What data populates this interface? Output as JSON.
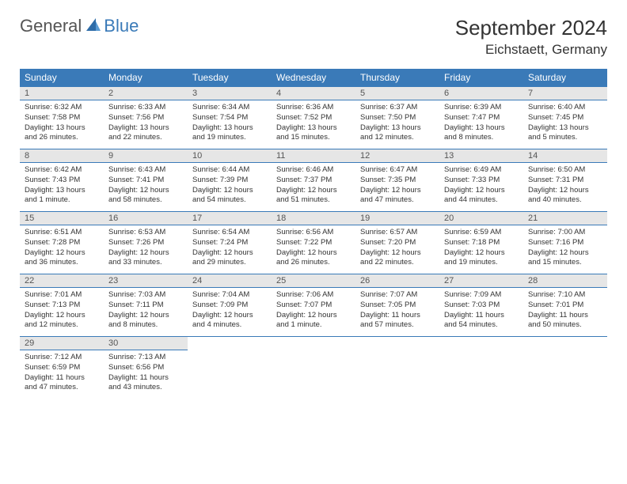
{
  "brand": {
    "part1": "General",
    "part2": "Blue"
  },
  "title": "September 2024",
  "location": "Eichstaett, Germany",
  "colors": {
    "header_bg": "#3a7ab8",
    "header_text": "#ffffff",
    "daynum_bg": "#e6e6e6",
    "divider": "#3a7ab8",
    "text": "#333333",
    "page_bg": "#ffffff"
  },
  "typography": {
    "title_fontsize": 26,
    "location_fontsize": 17,
    "dayheader_fontsize": 12,
    "daynum_fontsize": 11,
    "body_fontsize": 9.5
  },
  "day_headers": [
    "Sunday",
    "Monday",
    "Tuesday",
    "Wednesday",
    "Thursday",
    "Friday",
    "Saturday"
  ],
  "weeks": [
    [
      {
        "num": "1",
        "sunrise": "Sunrise: 6:32 AM",
        "sunset": "Sunset: 7:58 PM",
        "daylight": "Daylight: 13 hours and 26 minutes."
      },
      {
        "num": "2",
        "sunrise": "Sunrise: 6:33 AM",
        "sunset": "Sunset: 7:56 PM",
        "daylight": "Daylight: 13 hours and 22 minutes."
      },
      {
        "num": "3",
        "sunrise": "Sunrise: 6:34 AM",
        "sunset": "Sunset: 7:54 PM",
        "daylight": "Daylight: 13 hours and 19 minutes."
      },
      {
        "num": "4",
        "sunrise": "Sunrise: 6:36 AM",
        "sunset": "Sunset: 7:52 PM",
        "daylight": "Daylight: 13 hours and 15 minutes."
      },
      {
        "num": "5",
        "sunrise": "Sunrise: 6:37 AM",
        "sunset": "Sunset: 7:50 PM",
        "daylight": "Daylight: 13 hours and 12 minutes."
      },
      {
        "num": "6",
        "sunrise": "Sunrise: 6:39 AM",
        "sunset": "Sunset: 7:47 PM",
        "daylight": "Daylight: 13 hours and 8 minutes."
      },
      {
        "num": "7",
        "sunrise": "Sunrise: 6:40 AM",
        "sunset": "Sunset: 7:45 PM",
        "daylight": "Daylight: 13 hours and 5 minutes."
      }
    ],
    [
      {
        "num": "8",
        "sunrise": "Sunrise: 6:42 AM",
        "sunset": "Sunset: 7:43 PM",
        "daylight": "Daylight: 13 hours and 1 minute."
      },
      {
        "num": "9",
        "sunrise": "Sunrise: 6:43 AM",
        "sunset": "Sunset: 7:41 PM",
        "daylight": "Daylight: 12 hours and 58 minutes."
      },
      {
        "num": "10",
        "sunrise": "Sunrise: 6:44 AM",
        "sunset": "Sunset: 7:39 PM",
        "daylight": "Daylight: 12 hours and 54 minutes."
      },
      {
        "num": "11",
        "sunrise": "Sunrise: 6:46 AM",
        "sunset": "Sunset: 7:37 PM",
        "daylight": "Daylight: 12 hours and 51 minutes."
      },
      {
        "num": "12",
        "sunrise": "Sunrise: 6:47 AM",
        "sunset": "Sunset: 7:35 PM",
        "daylight": "Daylight: 12 hours and 47 minutes."
      },
      {
        "num": "13",
        "sunrise": "Sunrise: 6:49 AM",
        "sunset": "Sunset: 7:33 PM",
        "daylight": "Daylight: 12 hours and 44 minutes."
      },
      {
        "num": "14",
        "sunrise": "Sunrise: 6:50 AM",
        "sunset": "Sunset: 7:31 PM",
        "daylight": "Daylight: 12 hours and 40 minutes."
      }
    ],
    [
      {
        "num": "15",
        "sunrise": "Sunrise: 6:51 AM",
        "sunset": "Sunset: 7:28 PM",
        "daylight": "Daylight: 12 hours and 36 minutes."
      },
      {
        "num": "16",
        "sunrise": "Sunrise: 6:53 AM",
        "sunset": "Sunset: 7:26 PM",
        "daylight": "Daylight: 12 hours and 33 minutes."
      },
      {
        "num": "17",
        "sunrise": "Sunrise: 6:54 AM",
        "sunset": "Sunset: 7:24 PM",
        "daylight": "Daylight: 12 hours and 29 minutes."
      },
      {
        "num": "18",
        "sunrise": "Sunrise: 6:56 AM",
        "sunset": "Sunset: 7:22 PM",
        "daylight": "Daylight: 12 hours and 26 minutes."
      },
      {
        "num": "19",
        "sunrise": "Sunrise: 6:57 AM",
        "sunset": "Sunset: 7:20 PM",
        "daylight": "Daylight: 12 hours and 22 minutes."
      },
      {
        "num": "20",
        "sunrise": "Sunrise: 6:59 AM",
        "sunset": "Sunset: 7:18 PM",
        "daylight": "Daylight: 12 hours and 19 minutes."
      },
      {
        "num": "21",
        "sunrise": "Sunrise: 7:00 AM",
        "sunset": "Sunset: 7:16 PM",
        "daylight": "Daylight: 12 hours and 15 minutes."
      }
    ],
    [
      {
        "num": "22",
        "sunrise": "Sunrise: 7:01 AM",
        "sunset": "Sunset: 7:13 PM",
        "daylight": "Daylight: 12 hours and 12 minutes."
      },
      {
        "num": "23",
        "sunrise": "Sunrise: 7:03 AM",
        "sunset": "Sunset: 7:11 PM",
        "daylight": "Daylight: 12 hours and 8 minutes."
      },
      {
        "num": "24",
        "sunrise": "Sunrise: 7:04 AM",
        "sunset": "Sunset: 7:09 PM",
        "daylight": "Daylight: 12 hours and 4 minutes."
      },
      {
        "num": "25",
        "sunrise": "Sunrise: 7:06 AM",
        "sunset": "Sunset: 7:07 PM",
        "daylight": "Daylight: 12 hours and 1 minute."
      },
      {
        "num": "26",
        "sunrise": "Sunrise: 7:07 AM",
        "sunset": "Sunset: 7:05 PM",
        "daylight": "Daylight: 11 hours and 57 minutes."
      },
      {
        "num": "27",
        "sunrise": "Sunrise: 7:09 AM",
        "sunset": "Sunset: 7:03 PM",
        "daylight": "Daylight: 11 hours and 54 minutes."
      },
      {
        "num": "28",
        "sunrise": "Sunrise: 7:10 AM",
        "sunset": "Sunset: 7:01 PM",
        "daylight": "Daylight: 11 hours and 50 minutes."
      }
    ],
    [
      {
        "num": "29",
        "sunrise": "Sunrise: 7:12 AM",
        "sunset": "Sunset: 6:59 PM",
        "daylight": "Daylight: 11 hours and 47 minutes."
      },
      {
        "num": "30",
        "sunrise": "Sunrise: 7:13 AM",
        "sunset": "Sunset: 6:56 PM",
        "daylight": "Daylight: 11 hours and 43 minutes."
      },
      null,
      null,
      null,
      null,
      null
    ]
  ]
}
